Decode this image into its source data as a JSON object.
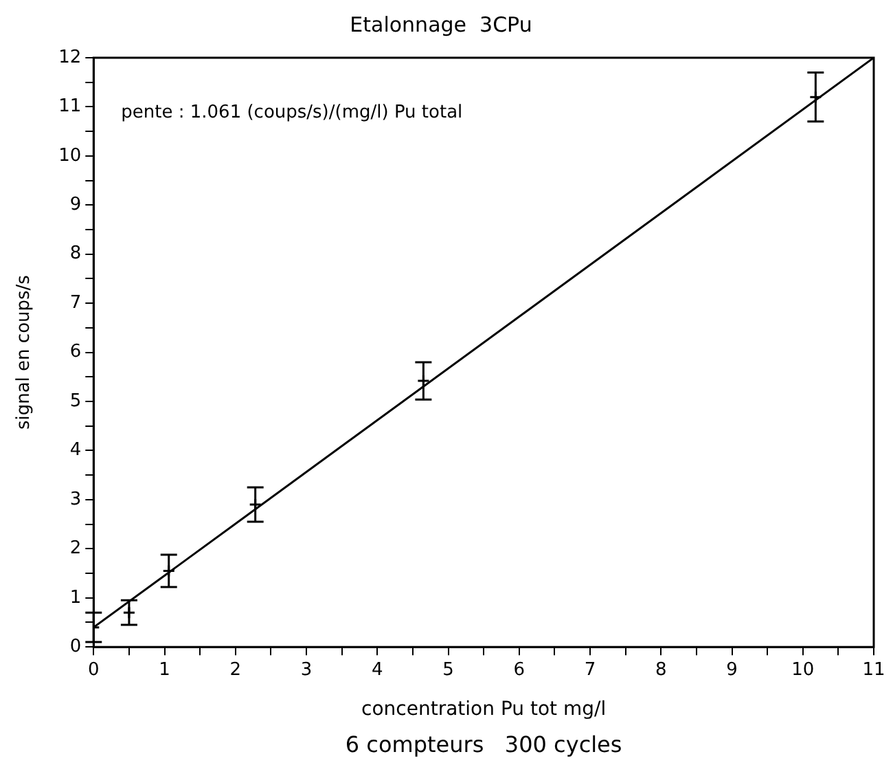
{
  "chart_data": {
    "type": "scatter",
    "title": "Etalonnage  3CPu",
    "xlabel": "concentration Pu tot mg/l",
    "ylabel": "signal en coups/s",
    "annotations": [
      "pente : 1.061 (coups/s)/(mg/l) Pu total",
      "6 compteurs   300 cycles"
    ],
    "series": [
      {
        "color": "#000000",
        "marker": "cross",
        "x": [
          0,
          0.5,
          1.06,
          2.28,
          4.65,
          10.18
        ],
        "values": [
          0.4,
          0.7,
          1.55,
          2.9,
          5.42,
          11.2
        ],
        "errors": [
          0.3,
          0.25,
          0.33,
          0.35,
          0.38,
          0.5
        ]
      },
      {
        "type": "line",
        "marker": "none",
        "color": "#000000",
        "x": [
          0,
          11
        ],
        "values": [
          0.4,
          12
        ]
      }
    ],
    "line_style": "solid",
    "grid": false,
    "legend": false,
    "xlim": [
      0,
      11
    ],
    "ylim": [
      0,
      12
    ],
    "xticks": [
      0,
      {
        "value": 0.5,
        "label": null
      },
      1,
      {
        "value": 1.5,
        "label": null
      },
      2,
      {
        "value": 2.5,
        "label": null
      },
      3,
      {
        "value": 3.5,
        "label": null
      },
      4,
      {
        "value": 4.5,
        "label": null
      },
      5,
      {
        "value": 5.5,
        "label": null
      },
      6,
      {
        "value": 6.5,
        "label": null
      },
      7,
      {
        "value": 7.5,
        "label": null
      },
      8,
      {
        "value": 8.5,
        "label": null
      },
      9,
      {
        "value": 9.5,
        "label": null
      },
      10,
      {
        "value": 10.5,
        "label": null
      },
      11
    ],
    "yticks": [
      0,
      {
        "value": 0.5,
        "label": null
      },
      1,
      {
        "value": 1.5,
        "label": null
      },
      2,
      {
        "value": 2.5,
        "label": null
      },
      3,
      {
        "value": 3.5,
        "label": null
      },
      4,
      {
        "value": 4.5,
        "label": null
      },
      5,
      {
        "value": 5.5,
        "label": null
      },
      6,
      {
        "value": 6.5,
        "label": null
      },
      7,
      {
        "value": 7.5,
        "label": null
      },
      8,
      {
        "value": 8.5,
        "label": null
      },
      9,
      {
        "value": 9.5,
        "label": null
      },
      10,
      {
        "value": 10.5,
        "label": null
      },
      11,
      {
        "value": 11.5,
        "label": null
      },
      12
    ]
  }
}
